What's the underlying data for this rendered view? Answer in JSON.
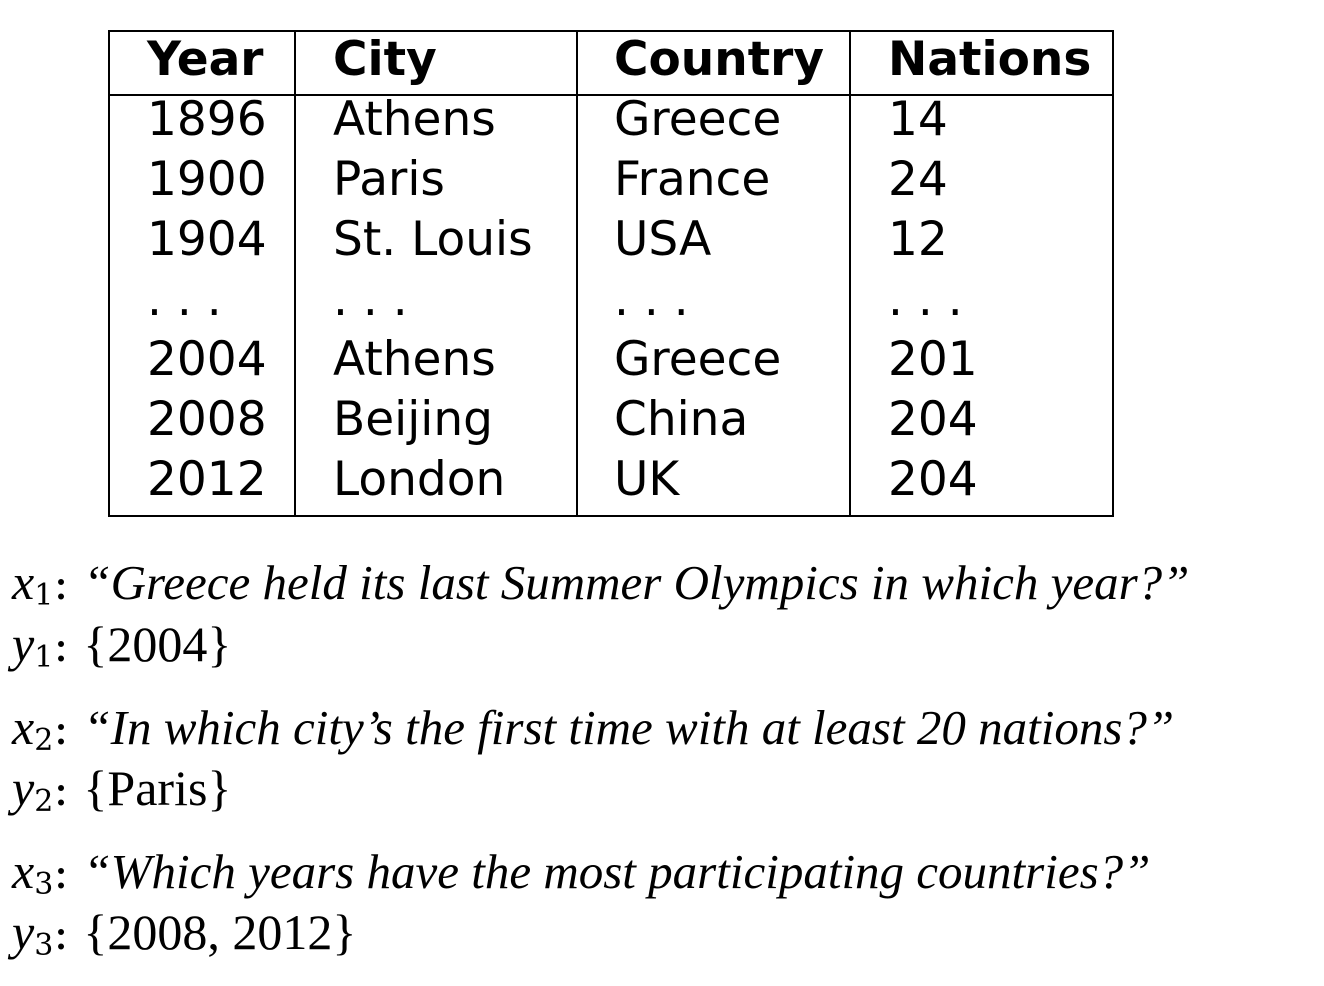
{
  "table": {
    "headers": [
      "Year",
      "City",
      "Country",
      "Nations"
    ],
    "rows": [
      [
        "1896",
        "Athens",
        "Greece",
        "14"
      ],
      [
        "1900",
        "Paris",
        "France",
        "24"
      ],
      [
        "1904",
        "St. Louis",
        "USA",
        "12"
      ],
      [
        ". . .",
        ". . .",
        ". . .",
        ". . ."
      ],
      [
        "2004",
        "Athens",
        "Greece",
        "201"
      ],
      [
        "2008",
        "Beijing",
        "China",
        "204"
      ],
      [
        "2012",
        "London",
        "UK",
        "204"
      ]
    ]
  },
  "examples": [
    {
      "x_var": "x",
      "y_var": "y",
      "index": "1",
      "question": "“Greece held its last Summer Olympics in which year?”",
      "answer": "{2004}"
    },
    {
      "x_var": "x",
      "y_var": "y",
      "index": "2",
      "question": "“In which city’s the first time with at least 20 nations?”",
      "answer": "{Paris}"
    },
    {
      "x_var": "x",
      "y_var": "y",
      "index": "3",
      "question": "“Which years have the most participating countries?”",
      "answer": "{2008, 2012}"
    }
  ]
}
